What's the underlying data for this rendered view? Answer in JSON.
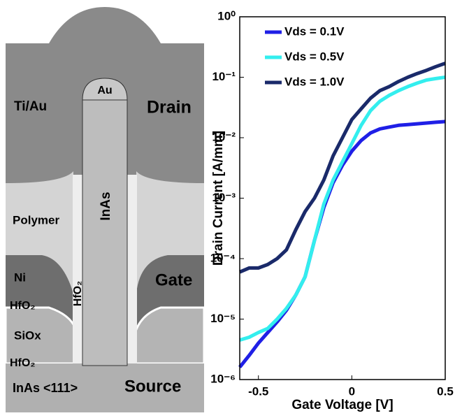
{
  "diagram": {
    "labels": [
      "Ti/Au",
      "Drain",
      "Au",
      "InAs",
      "Polymer",
      "Ni",
      "Gate",
      "HfO₂",
      "HfO₂",
      "SiOx",
      "HfO₂",
      "InAs <111>",
      "Source"
    ]
  },
  "chart_data": {
    "type": "line",
    "xlabel": "Gate Voltage [V]",
    "ylabel": "Drain Current [A/mm]",
    "x": [
      -0.6,
      -0.55,
      -0.5,
      -0.45,
      -0.4,
      -0.35,
      -0.3,
      -0.25,
      -0.2,
      -0.15,
      -0.1,
      -0.05,
      0,
      0.05,
      0.1,
      0.15,
      0.2,
      0.25,
      0.3,
      0.35,
      0.4,
      0.45,
      0.5
    ],
    "series": [
      {
        "name": "Vds = 0.1V",
        "color": "#1f1fe6",
        "values": [
          1.6e-06,
          2.5e-06,
          4e-06,
          6e-06,
          9e-06,
          1.4e-05,
          2.5e-05,
          5e-05,
          0.0002,
          0.0007,
          0.0018,
          0.0035,
          0.006,
          0.009,
          0.012,
          0.014,
          0.015,
          0.016,
          0.0165,
          0.017,
          0.0175,
          0.018,
          0.0185
        ]
      },
      {
        "name": "Vds = 0.5V",
        "color": "#33eeee",
        "values": [
          4.5e-06,
          5e-06,
          6e-06,
          7e-06,
          1e-05,
          1.5e-05,
          2.5e-05,
          5e-05,
          0.0002,
          0.0008,
          0.002,
          0.004,
          0.008,
          0.016,
          0.028,
          0.04,
          0.05,
          0.06,
          0.07,
          0.08,
          0.09,
          0.095,
          0.1
        ]
      },
      {
        "name": "Vds = 1.0V",
        "color": "#1a2a6a",
        "values": [
          6e-05,
          7e-05,
          7e-05,
          8e-05,
          0.0001,
          0.00014,
          0.0003,
          0.0006,
          0.001,
          0.002,
          0.005,
          0.01,
          0.02,
          0.03,
          0.045,
          0.06,
          0.07,
          0.085,
          0.1,
          0.115,
          0.13,
          0.15,
          0.17
        ]
      }
    ],
    "xlim": [
      -0.6,
      0.5
    ],
    "xticks": [
      -0.5,
      0,
      0.5
    ],
    "ylim": [
      1e-06,
      1
    ],
    "yscale": "log",
    "yticks": [
      {
        "value": 1e-06,
        "label": "10⁻⁶"
      },
      {
        "value": 1e-05,
        "label": "10⁻⁵"
      },
      {
        "value": 0.0001,
        "label": "10⁻⁴"
      },
      {
        "value": 0.001,
        "label": "10⁻³"
      },
      {
        "value": 0.01,
        "label": "10⁻²"
      },
      {
        "value": 0.1,
        "label": "10⁻¹"
      },
      {
        "value": 1,
        "label": "10⁰"
      }
    ],
    "grid": false,
    "legend": "upper left"
  }
}
